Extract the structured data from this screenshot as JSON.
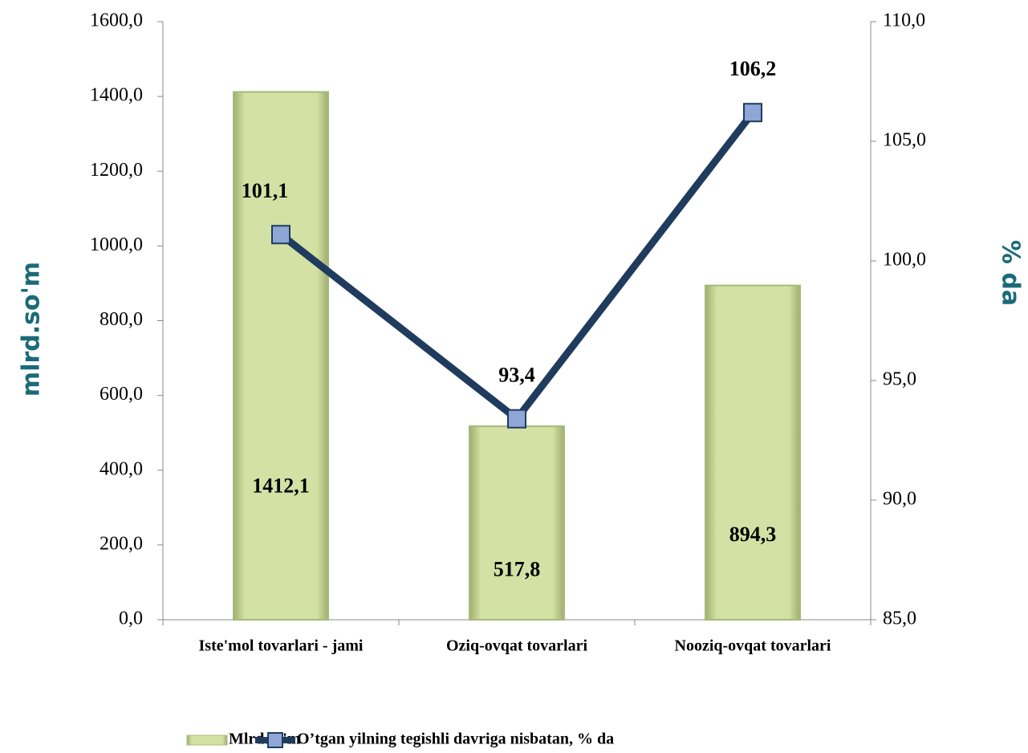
{
  "chart_data": {
    "type": "combo",
    "categories": [
      "Iste'mol tovarlari - jami",
      "Oziq-ovqat tovarlari",
      "Nooziq-ovqat tovarlari"
    ],
    "series": [
      {
        "name": "Mlrd.so'm",
        "type": "bar",
        "color": "#d3e2a4",
        "values": [
          1412.1,
          517.8,
          894.3
        ],
        "value_labels": [
          "1412,1",
          "517,8",
          "894,3"
        ]
      },
      {
        "name": "O’tgan yilning tegishli davriga nisbatan, % da",
        "type": "line",
        "axis": "y2",
        "color": "#1f3b5e",
        "marker_color": "#8ea7d6",
        "values": [
          101.1,
          93.4,
          106.2
        ],
        "value_labels": [
          "101,1",
          "93,4",
          "106,2"
        ]
      }
    ],
    "ylabel": "mlrd.so'm",
    "y2label": "% da",
    "ylim": [
      0,
      1600
    ],
    "yticks": [
      {
        "value": 0,
        "label": "0,0"
      },
      {
        "value": 200,
        "label": "200,0"
      },
      {
        "value": 400,
        "label": "400,0"
      },
      {
        "value": 600,
        "label": "600,0"
      },
      {
        "value": 800,
        "label": "800,0"
      },
      {
        "value": 1000,
        "label": "1000,0"
      },
      {
        "value": 1200,
        "label": "1200,0"
      },
      {
        "value": 1400,
        "label": "1400,0"
      },
      {
        "value": 1600,
        "label": "1600,0"
      }
    ],
    "y2lim": [
      85,
      110
    ],
    "y2ticks": [
      {
        "value": 85,
        "label": "85,0"
      },
      {
        "value": 90,
        "label": "90,0"
      },
      {
        "value": 95,
        "label": "95,0"
      },
      {
        "value": 100,
        "label": "100,0"
      },
      {
        "value": 105,
        "label": "105,0"
      },
      {
        "value": 110,
        "label": "110,0"
      }
    ],
    "legend": "bottom"
  }
}
